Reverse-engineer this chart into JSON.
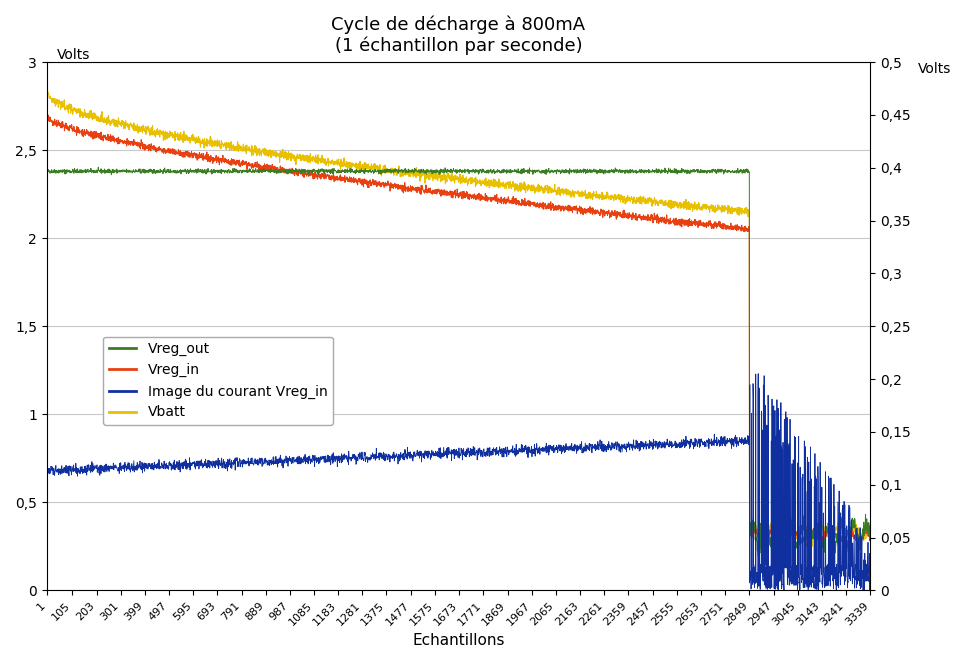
{
  "title": "Cycle de décharge à 800mA",
  "subtitle": "(1 échantillon par seconde)",
  "xlabel": "Echantillons",
  "ylabel_left": "Volts",
  "ylabel_right": "Volts",
  "ylim_left": [
    0,
    3
  ],
  "ylim_right": [
    0,
    0.5
  ],
  "xlim": [
    1,
    3339
  ],
  "n_samples": 3339,
  "colors": {
    "Vreg_out": "#3a7d23",
    "Vreg_in": "#e84010",
    "courant": "#1030a0",
    "Vbatt": "#e8c000"
  },
  "legend_labels": [
    "Vreg_out",
    "Vreg_in",
    "Image du courant Vreg_in",
    "Vbatt"
  ],
  "yticks_left": [
    0,
    0.5,
    1,
    1.5,
    2,
    2.5,
    3
  ],
  "yticks_right": [
    0,
    0.05,
    0.1,
    0.15,
    0.2,
    0.25,
    0.3,
    0.35,
    0.4,
    0.45,
    0.5
  ],
  "xtick_labels": [
    "1",
    "105",
    "203",
    "301",
    "399",
    "497",
    "595",
    "693",
    "791",
    "889",
    "987",
    "1085",
    "1183",
    "1281",
    "1375",
    "1477",
    "1575",
    "1673",
    "1771",
    "1869",
    "1967",
    "2065",
    "2163",
    "2261",
    "2359",
    "2457",
    "2555",
    "2653",
    "2751",
    "2849",
    "2947",
    "3045",
    "3143",
    "3241",
    "3339"
  ],
  "xtick_positions": [
    1,
    105,
    203,
    301,
    399,
    497,
    595,
    693,
    791,
    889,
    987,
    1085,
    1183,
    1281,
    1375,
    1477,
    1575,
    1673,
    1771,
    1869,
    1967,
    2065,
    2163,
    2261,
    2359,
    2457,
    2555,
    2653,
    2751,
    2849,
    2947,
    3045,
    3143,
    3241,
    3339
  ],
  "background_color": "#ffffff",
  "plot_background": "#ffffff",
  "grid_color": "#c8c8c8",
  "transition_point": 2849
}
